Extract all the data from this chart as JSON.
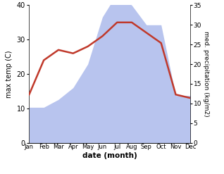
{
  "months": [
    "Jan",
    "Feb",
    "Mar",
    "Apr",
    "May",
    "Jun",
    "Jul",
    "Aug",
    "Sep",
    "Oct",
    "Nov",
    "Dec"
  ],
  "temperature": [
    14,
    24,
    27,
    26,
    28,
    31,
    35,
    35,
    32,
    29,
    14,
    13
  ],
  "precipitation": [
    9,
    9,
    11,
    14,
    20,
    32,
    38,
    35,
    30,
    30,
    12,
    12
  ],
  "temp_color": "#c0392b",
  "precip_color": "#b8c4ee",
  "ylim_temp": [
    0,
    40
  ],
  "ylim_precip": [
    0,
    35
  ],
  "ylabel_left": "max temp (C)",
  "ylabel_right": "med. precipitation (kg/m2)",
  "xlabel": "date (month)",
  "temp_linewidth": 1.8,
  "background_color": "#ffffff"
}
